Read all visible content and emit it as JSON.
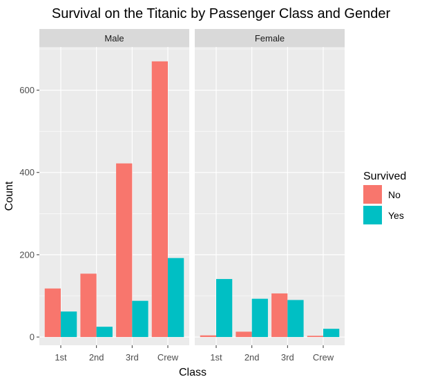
{
  "chart_data": {
    "type": "bar",
    "title": "Survival on the Titanic by Passenger Class and Gender",
    "xlabel": "Class",
    "ylabel": "Count",
    "ylim": [
      -20,
      705
    ],
    "yticks": [
      0,
      200,
      400,
      600
    ],
    "categories": [
      "1st",
      "2nd",
      "3rd",
      "Crew"
    ],
    "legend": {
      "title": "Survived",
      "position": "right",
      "entries": [
        {
          "label": "No",
          "color": "#F8766D"
        },
        {
          "label": "Yes",
          "color": "#00BFC4"
        }
      ]
    },
    "panels": [
      {
        "label": "Male",
        "series": [
          {
            "name": "No",
            "values": [
              118,
              154,
              422,
              670
            ]
          },
          {
            "name": "Yes",
            "values": [
              62,
              25,
              88,
              192
            ]
          }
        ]
      },
      {
        "label": "Female",
        "series": [
          {
            "name": "No",
            "values": [
              4,
              13,
              106,
              3
            ]
          },
          {
            "name": "Yes",
            "values": [
              141,
              93,
              90,
              20
            ]
          }
        ]
      }
    ],
    "grid": true,
    "colors": {
      "panel_bg": "#EBEBEB",
      "strip_bg": "#D9D9D9",
      "grid_major": "#FFFFFF",
      "text": "#000000",
      "axis_text": "#4D4D4D"
    }
  }
}
